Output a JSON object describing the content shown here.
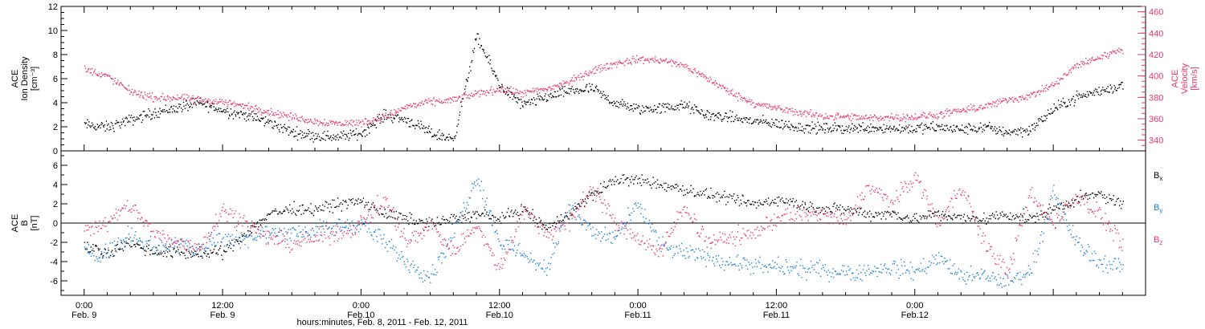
{
  "chart_data": [
    {
      "type": "scatter",
      "panel": "top",
      "ylabel_lines": [
        "ACE",
        "Ion Density",
        "[cm⁻³]"
      ],
      "y2label_lines": [
        "ACE",
        "Velocity",
        "[km/s]"
      ],
      "ylim": [
        0,
        12
      ],
      "yticks": [
        "0",
        "2",
        "4",
        "6",
        "8",
        "10",
        "12"
      ],
      "y2lim": [
        330,
        465
      ],
      "y2ticks": [
        "340",
        "360",
        "380",
        "400",
        "420",
        "440",
        "460"
      ],
      "xlim_hours": [
        -2,
        92
      ],
      "series": [
        {
          "name": "Ion Density",
          "axis": "left",
          "color": "#000000",
          "x_hours": [
            0,
            2,
            4,
            6,
            8,
            10,
            12,
            14,
            16,
            18,
            20,
            22,
            24,
            26,
            28,
            30,
            32,
            34,
            36,
            38,
            40,
            42,
            44,
            46,
            48,
            50,
            52,
            54,
            56,
            58,
            60,
            62,
            64,
            66,
            68,
            70,
            72,
            74,
            76,
            78,
            80,
            82,
            84,
            86,
            88,
            90
          ],
          "values": [
            2.2,
            2.0,
            2.6,
            3.2,
            3.6,
            4.0,
            3.4,
            3.0,
            2.4,
            1.6,
            1.3,
            1.2,
            1.5,
            3.0,
            2.6,
            1.5,
            1.0,
            9.5,
            5.5,
            3.8,
            4.5,
            5.0,
            5.2,
            4.0,
            3.5,
            3.6,
            3.8,
            3.0,
            2.8,
            2.5,
            2.3,
            2.0,
            1.9,
            1.9,
            2.0,
            1.9,
            1.9,
            2.0,
            1.8,
            2.0,
            1.6,
            1.8,
            3.5,
            4.5,
            5.0,
            5.5
          ]
        },
        {
          "name": "Velocity",
          "axis": "right",
          "color": "#e8356a",
          "x_hours": [
            0,
            2,
            4,
            6,
            8,
            10,
            12,
            14,
            16,
            18,
            20,
            22,
            24,
            26,
            28,
            30,
            32,
            34,
            36,
            38,
            40,
            42,
            44,
            46,
            48,
            50,
            52,
            54,
            56,
            58,
            60,
            62,
            64,
            66,
            68,
            70,
            72,
            74,
            76,
            78,
            80,
            82,
            84,
            86,
            88,
            90
          ],
          "values": [
            407,
            400,
            386,
            380,
            380,
            378,
            376,
            372,
            367,
            362,
            358,
            356,
            357,
            362,
            372,
            376,
            378,
            384,
            388,
            384,
            388,
            395,
            405,
            412,
            416,
            415,
            410,
            398,
            385,
            375,
            370,
            366,
            363,
            362,
            361,
            362,
            362,
            364,
            368,
            372,
            378,
            382,
            392,
            410,
            418,
            426
          ]
        }
      ]
    },
    {
      "type": "scatter",
      "panel": "bottom",
      "ylabel_lines": [
        "ACE",
        "B",
        "[nT]"
      ],
      "ylim": [
        -7.5,
        7.5
      ],
      "yticks": [
        "-6",
        "-4",
        "-2",
        "0",
        "2",
        "4",
        "6"
      ],
      "xlim_hours": [
        -2,
        92
      ],
      "zero_line": true,
      "legend": "right",
      "series": [
        {
          "name": "Bx",
          "label": "B",
          "sub": "x",
          "color": "#000000",
          "x_hours": [
            0,
            2,
            4,
            6,
            8,
            10,
            12,
            14,
            16,
            18,
            20,
            22,
            24,
            26,
            28,
            30,
            32,
            34,
            36,
            38,
            40,
            42,
            44,
            46,
            48,
            50,
            52,
            54,
            56,
            58,
            60,
            62,
            64,
            66,
            68,
            70,
            72,
            74,
            76,
            78,
            80,
            82,
            84,
            86,
            88,
            90
          ],
          "values": [
            -2.5,
            -3.0,
            -2.0,
            -3.0,
            -3.0,
            -3.2,
            -3.0,
            -1.0,
            1.0,
            1.5,
            1.5,
            2.0,
            2.3,
            1.0,
            0.5,
            0.0,
            0.5,
            1.0,
            0.5,
            1.5,
            -0.5,
            1.0,
            3.0,
            4.5,
            4.5,
            4.0,
            3.5,
            3.0,
            2.5,
            2.0,
            2.5,
            2.0,
            1.5,
            1.5,
            1.0,
            1.0,
            0.5,
            1.0,
            0.5,
            0.5,
            1.0,
            0.5,
            1.5,
            2.5,
            3.0,
            2.0
          ]
        },
        {
          "name": "By",
          "label": "B",
          "sub": "y",
          "color": "#1a7fdb",
          "x_hours": [
            0,
            2,
            4,
            6,
            8,
            10,
            12,
            14,
            16,
            18,
            20,
            22,
            24,
            26,
            28,
            30,
            32,
            34,
            36,
            38,
            40,
            42,
            44,
            46,
            48,
            50,
            52,
            54,
            56,
            58,
            60,
            62,
            64,
            66,
            68,
            70,
            72,
            74,
            76,
            78,
            80,
            82,
            84,
            86,
            88,
            90
          ],
          "values": [
            -3.0,
            -3.0,
            -1.0,
            -2.5,
            -2.0,
            -2.5,
            -1.5,
            -1.5,
            -1.0,
            -0.8,
            -0.8,
            -0.3,
            0.0,
            -2.0,
            -4.0,
            -5.5,
            -1.0,
            5.0,
            -2.0,
            -3.0,
            -5.0,
            2.0,
            -1.0,
            -1.5,
            2.0,
            -2.5,
            -3.0,
            -3.5,
            -4.0,
            -4.5,
            -4.5,
            -4.8,
            -4.8,
            -5.0,
            -5.0,
            -4.5,
            -5.0,
            -3.5,
            -5.5,
            -5.5,
            -6.0,
            -5.0,
            3.0,
            -2.0,
            -4.0,
            -4.5
          ]
        },
        {
          "name": "Bz",
          "label": "B",
          "sub": "z",
          "color": "#e8356a",
          "x_hours": [
            0,
            2,
            4,
            6,
            8,
            10,
            12,
            14,
            16,
            18,
            20,
            22,
            24,
            26,
            28,
            30,
            32,
            34,
            36,
            38,
            40,
            42,
            44,
            46,
            48,
            50,
            52,
            54,
            56,
            58,
            60,
            62,
            64,
            66,
            68,
            70,
            72,
            74,
            76,
            78,
            80,
            82,
            84,
            86,
            88,
            90
          ],
          "values": [
            -0.5,
            0.0,
            2.0,
            -1.0,
            -2.0,
            -2.5,
            1.5,
            0.0,
            -1.5,
            -2.0,
            -1.5,
            -1.0,
            0.0,
            2.5,
            -2.0,
            0.0,
            -3.0,
            0.0,
            -5.0,
            1.5,
            -1.0,
            0.0,
            4.0,
            0.0,
            -1.5,
            -3.0,
            2.0,
            -2.0,
            -1.5,
            -1.0,
            0.5,
            1.0,
            1.0,
            0.0,
            4.0,
            2.0,
            5.0,
            0.0,
            4.0,
            -2.0,
            -5.0,
            3.0,
            0.0,
            3.0,
            1.0,
            -2.0
          ]
        }
      ]
    }
  ],
  "x_axis": {
    "ticks": [
      {
        "hour": 0,
        "time": "0:00",
        "date": "Feb. 9"
      },
      {
        "hour": 12,
        "time": "12:00",
        "date": "Feb. 9"
      },
      {
        "hour": 24,
        "time": "0:00",
        "date": "Feb.10"
      },
      {
        "hour": 36,
        "time": "12:00",
        "date": "Feb.10"
      },
      {
        "hour": 48,
        "time": "0:00",
        "date": "Feb.11"
      },
      {
        "hour": 60,
        "time": "12:00",
        "date": "Feb.11"
      },
      {
        "hour": 72,
        "time": "0:00",
        "date": "Feb.12"
      }
    ],
    "label": "hours:minutes, Feb.  8, 2011 - Feb. 12, 2011"
  }
}
